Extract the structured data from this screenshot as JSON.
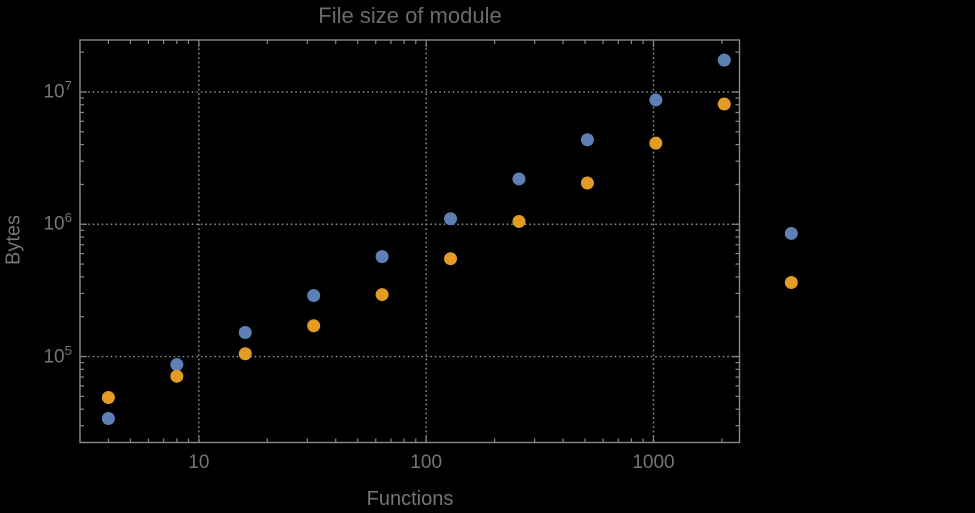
{
  "colors": {
    "background": "#000000",
    "series1": "#5e81b5",
    "series2": "#e09c24",
    "frame": "#8a8a8a",
    "grid": "#8f8f8f",
    "title_text": "#6b6b6b",
    "label_text": "#757575"
  },
  "chart_data": {
    "type": "scatter",
    "title": "File size of module",
    "xlabel": "Functions",
    "ylabel": "Bytes",
    "x_scale": "log",
    "y_scale": "log",
    "xlim": [
      3.0,
      2390
    ],
    "ylim": [
      22400,
      24700000
    ],
    "grid": "major-dotted",
    "legend_position": "right-of-frame-markers-only",
    "x_major_ticks": [
      {
        "value": 10,
        "label": "10"
      },
      {
        "value": 100,
        "label": "100"
      },
      {
        "value": 1000,
        "label": "1000"
      }
    ],
    "x_minor_ticks": [
      4,
      5,
      6,
      7,
      8,
      9,
      20,
      30,
      40,
      50,
      60,
      70,
      80,
      90,
      200,
      300,
      400,
      500,
      600,
      700,
      800,
      900,
      2000
    ],
    "y_major_ticks": [
      {
        "value": 100000,
        "base": "10",
        "exp": "5"
      },
      {
        "value": 1000000,
        "base": "10",
        "exp": "6"
      },
      {
        "value": 10000000,
        "base": "10",
        "exp": "7"
      }
    ],
    "y_minor_ticks": [
      30000,
      40000,
      50000,
      60000,
      70000,
      80000,
      90000,
      200000,
      300000,
      400000,
      500000,
      600000,
      700000,
      800000,
      900000,
      2000000,
      3000000,
      4000000,
      5000000,
      6000000,
      7000000,
      8000000,
      9000000,
      20000000
    ],
    "x": [
      4,
      8,
      16,
      32,
      64,
      128,
      256,
      512,
      1024,
      2048
    ],
    "series": [
      {
        "name": "series-1-blue",
        "color_key": "series1",
        "values": [
          34000,
          87000,
          152000,
          289000,
          569000,
          1100000,
          2200000,
          4350000,
          8700000,
          17400000
        ]
      },
      {
        "name": "series-2-orange",
        "color_key": "series2",
        "values": [
          49000,
          71000,
          105000,
          171000,
          294000,
          549000,
          1050000,
          2050000,
          4100000,
          8100000
        ]
      }
    ],
    "outside_markers": [
      {
        "x": 4040,
        "y": 852000,
        "series": 0
      },
      {
        "x": 4040,
        "y": 363000,
        "series": 1
      }
    ]
  }
}
